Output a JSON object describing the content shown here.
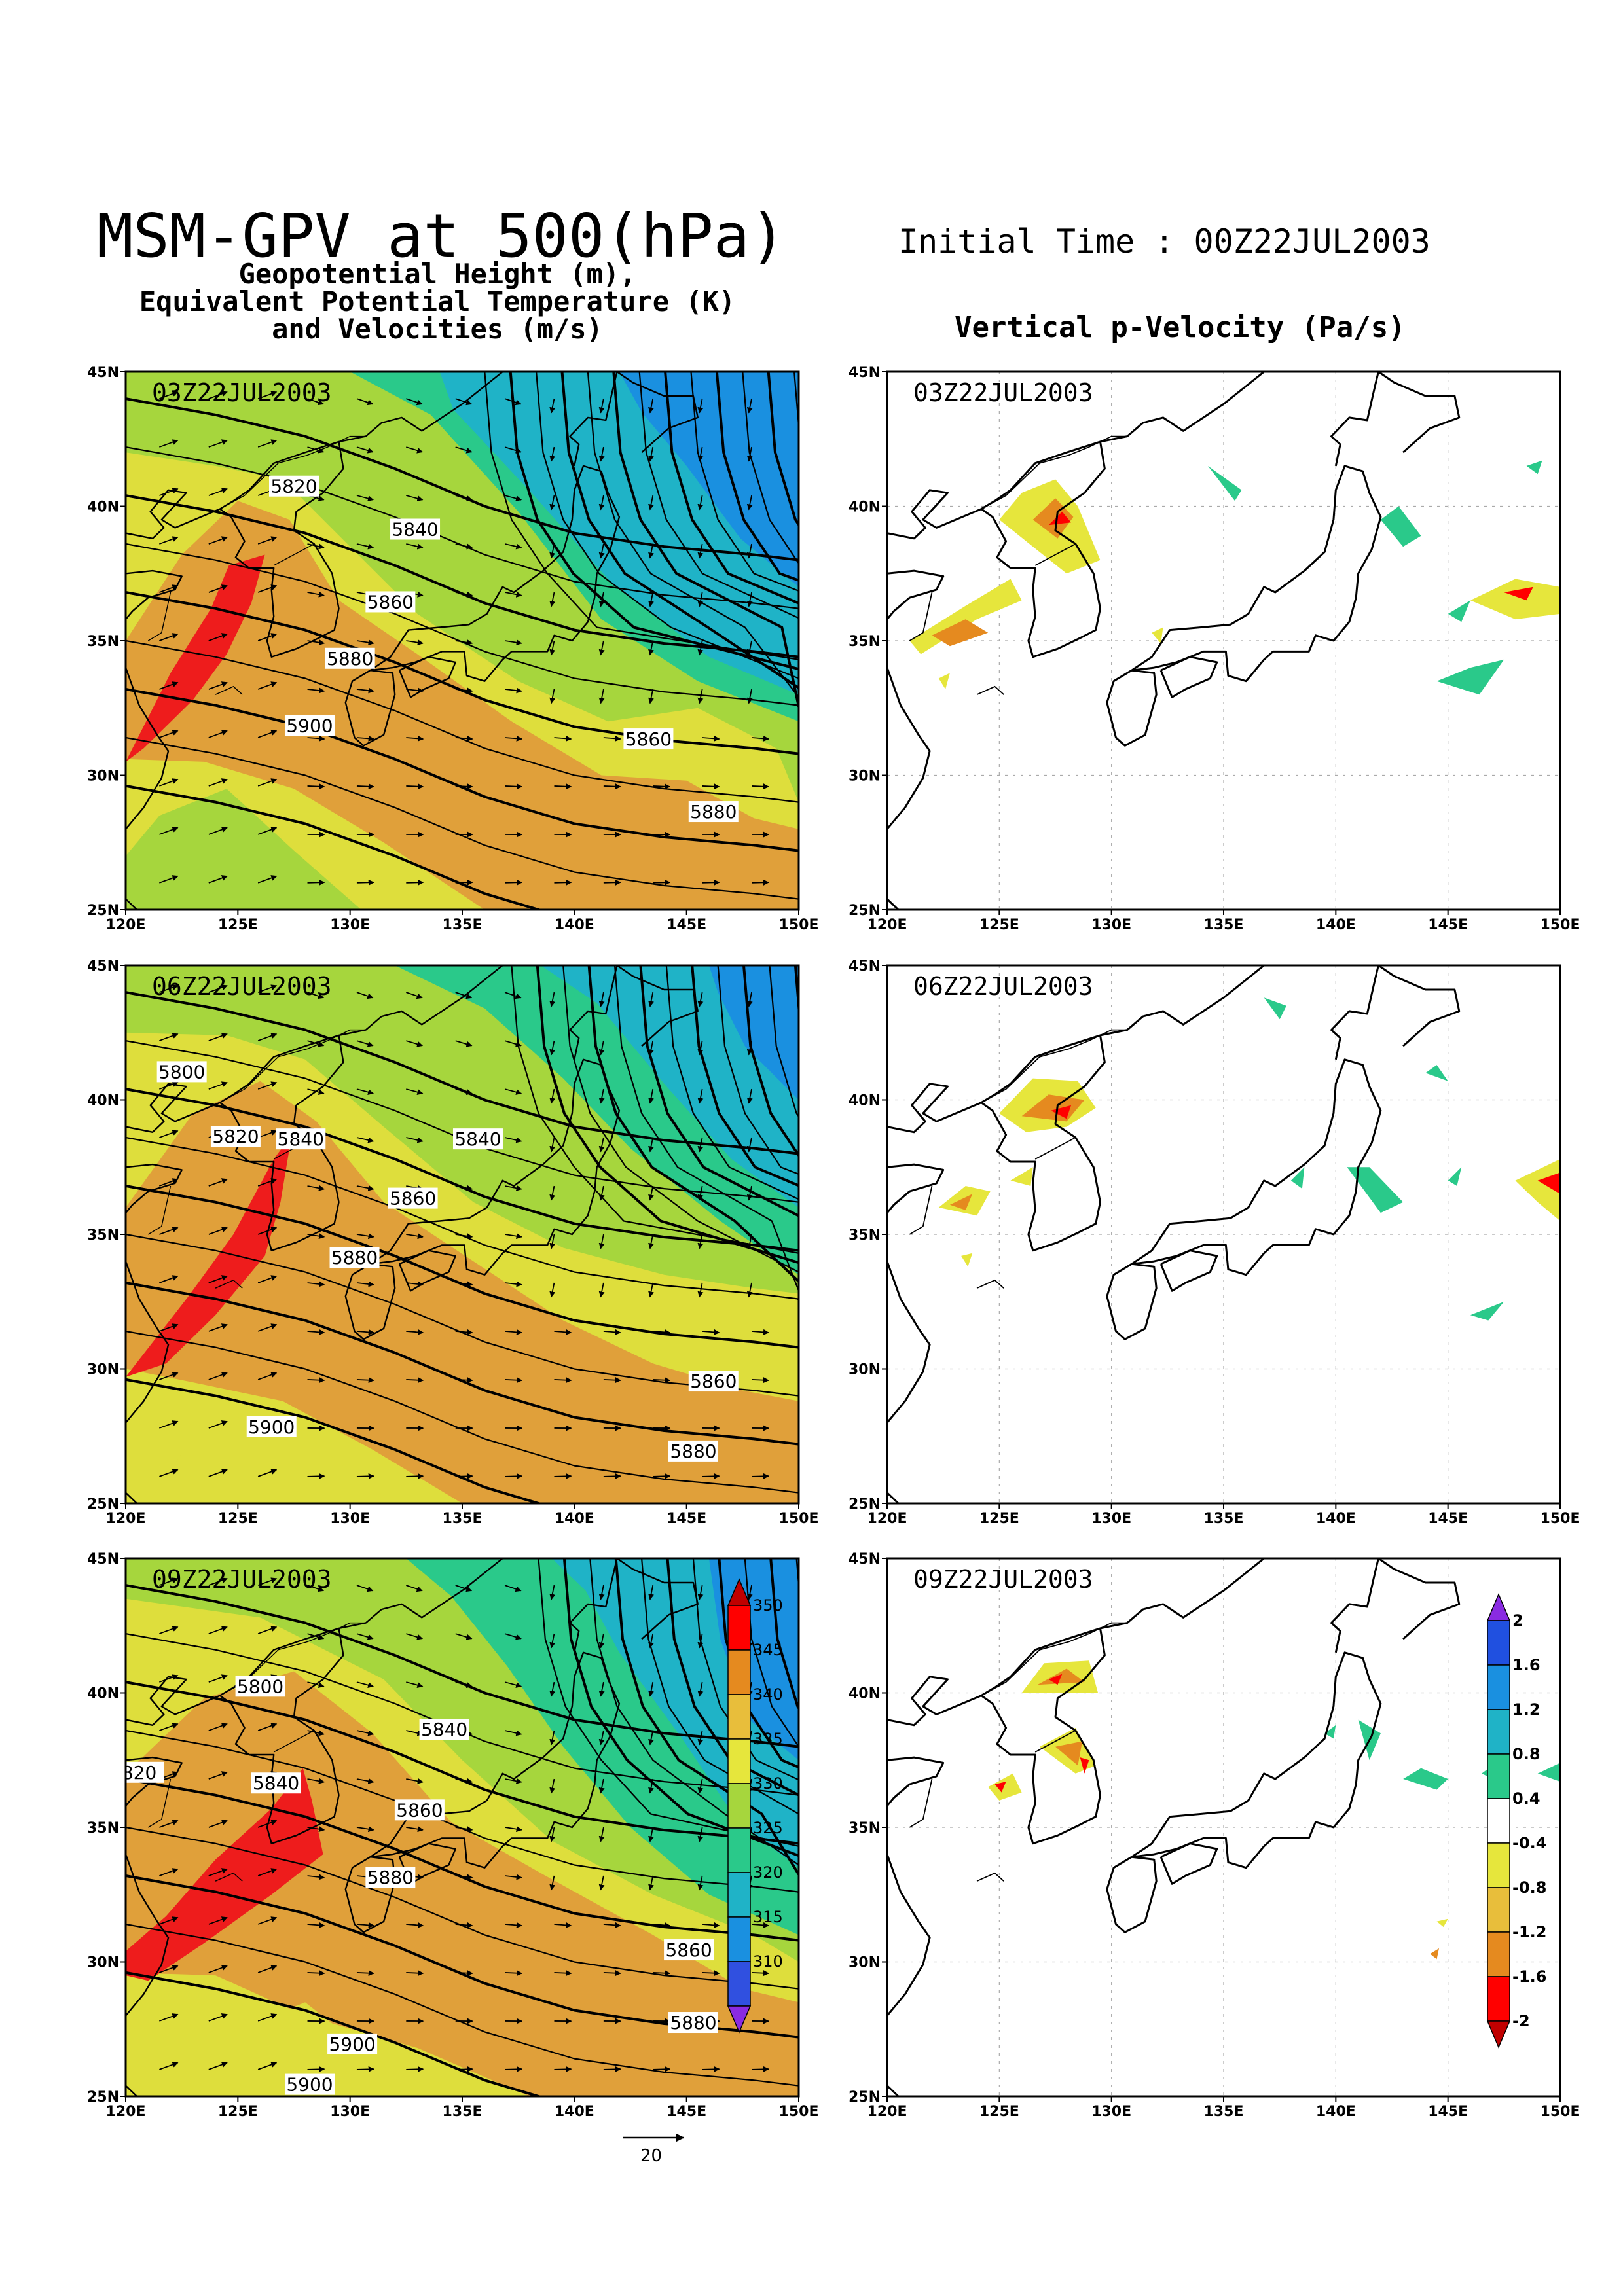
{
  "header": {
    "main_title": "MSM-GPV at 500(hPa)",
    "initial_time": "Initial Time : 00Z22JUL2003",
    "left_subtitle_lines": [
      "Geopotential Height (m),",
      "Equivalent Potential Temperature (K)",
      "and Velocities (m/s)"
    ],
    "right_title": "Vertical p-Velocity (Pa/s)"
  },
  "axes": {
    "lat_ticks": [
      "45N",
      "40N",
      "35N",
      "30N",
      "25N"
    ],
    "lon_ticks": [
      "120E",
      "125E",
      "130E",
      "135E",
      "140E",
      "145E",
      "150E"
    ]
  },
  "panels": [
    {
      "time": "03Z22JUL2003",
      "left_height_labels": [
        {
          "text": "5820",
          "lon": 127.5,
          "lat": 40.7
        },
        {
          "text": "5840",
          "lon": 132.9,
          "lat": 39.1
        },
        {
          "text": "5860",
          "lon": 131.8,
          "lat": 36.4
        },
        {
          "text": "5880",
          "lon": 130.0,
          "lat": 34.3
        },
        {
          "text": "5900",
          "lon": 128.2,
          "lat": 31.8
        },
        {
          "text": "5860",
          "lon": 143.3,
          "lat": 31.3
        },
        {
          "text": "5880",
          "lon": 146.2,
          "lat": 28.6
        }
      ]
    },
    {
      "time": "06Z22JUL2003",
      "left_height_labels": [
        {
          "text": "5800",
          "lon": 122.5,
          "lat": 41.0
        },
        {
          "text": "5820",
          "lon": 124.9,
          "lat": 38.6
        },
        {
          "text": "5840",
          "lon": 127.8,
          "lat": 38.5
        },
        {
          "text": "5840",
          "lon": 135.7,
          "lat": 38.5
        },
        {
          "text": "5860",
          "lon": 132.8,
          "lat": 36.3
        },
        {
          "text": "5880",
          "lon": 130.2,
          "lat": 34.1
        },
        {
          "text": "5860",
          "lon": 146.2,
          "lat": 29.5
        },
        {
          "text": "5900",
          "lon": 126.5,
          "lat": 27.8
        },
        {
          "text": "5880",
          "lon": 145.3,
          "lat": 26.9
        }
      ]
    },
    {
      "time": "09Z22JUL2003",
      "left_height_labels": [
        {
          "text": "5800",
          "lon": 126.0,
          "lat": 40.2
        },
        {
          "text": "5840",
          "lon": 134.2,
          "lat": 38.6
        },
        {
          "text": "820",
          "lon": 120.6,
          "lat": 37.0
        },
        {
          "text": "5840",
          "lon": 126.7,
          "lat": 36.6
        },
        {
          "text": "5860",
          "lon": 133.1,
          "lat": 35.6
        },
        {
          "text": "5880",
          "lon": 131.8,
          "lat": 33.1
        },
        {
          "text": "5860",
          "lon": 145.1,
          "lat": 30.4
        },
        {
          "text": "5880",
          "lon": 145.3,
          "lat": 27.7
        },
        {
          "text": "5900",
          "lon": 130.1,
          "lat": 26.9
        },
        {
          "text": "5900",
          "lon": 128.2,
          "lat": 25.4
        }
      ]
    }
  ],
  "ept_colorbar": {
    "labels": [
      "350",
      "345",
      "340",
      "335",
      "330",
      "325",
      "320",
      "315",
      "310"
    ],
    "colors": [
      "#c00000",
      "#ff0000",
      "#e58a1f",
      "#e8be3b",
      "#e6e63c",
      "#a6d63d",
      "#2ac98a",
      "#1fb3c7",
      "#1a90e0",
      "#3050e0",
      "#8a2be2"
    ]
  },
  "omega_colorbar": {
    "labels": [
      "2",
      "1.6",
      "1.2",
      "0.8",
      "0.4",
      "-0.4",
      "-0.8",
      "-1.2",
      "-1.6",
      "-2"
    ],
    "colors": [
      "#8a2be2",
      "#2050e0",
      "#1a90e0",
      "#1fb3c7",
      "#2ac98a",
      "#ffffff",
      "#e6e63c",
      "#e8be3b",
      "#e58a1f",
      "#ff0000",
      "#c00000"
    ]
  },
  "reference_vector": {
    "label": "20"
  },
  "colors": {
    "ept_red": "#ee1c1c",
    "ept_orange": "#e0a03a",
    "ept_yellow": "#dede3c",
    "ept_lightgreen": "#a6d63d",
    "ept_green": "#2ac98a",
    "ept_cyan": "#1fb3c7",
    "ept_blue": "#1a90e0"
  }
}
